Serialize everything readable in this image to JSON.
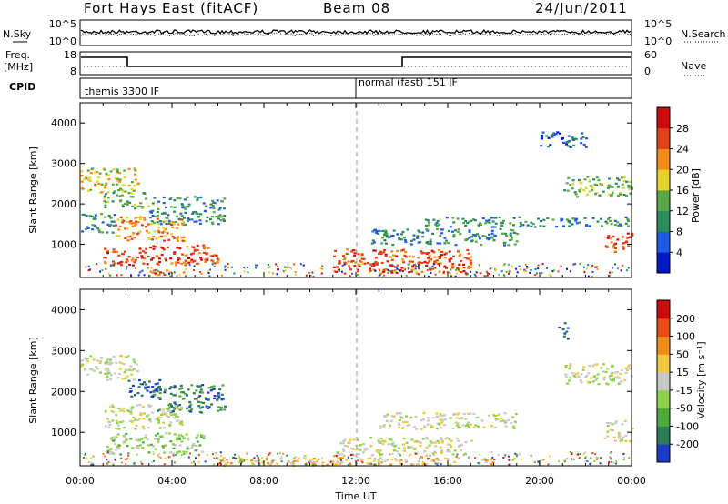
{
  "header": {
    "station": "Fort Hays East (fitACF)",
    "beam": "Beam 08",
    "date": "24/Jun/2011"
  },
  "noise_panel": {
    "left_label": "N.Sky",
    "left_ticks": [
      "10^5",
      "10^0"
    ],
    "right_ticks": [
      "10^5",
      "10^0"
    ],
    "right_label": "N.Search"
  },
  "freq_panel": {
    "left_label_1": "Freq.",
    "left_label_2": "[MHz]",
    "left_ticks": [
      "18",
      "8"
    ],
    "right_ticks": [
      "60",
      "0"
    ],
    "right_label": "Nave"
  },
  "cpid_panel": {
    "label": "CPID",
    "modes": [
      {
        "name": "themis 3300 IF",
        "start_hour": 0
      },
      {
        "name": "normal (fast) 151 IF",
        "start_hour": 12
      }
    ]
  },
  "chart_data": [
    {
      "type": "heatmap",
      "quantity": "Power",
      "ylabel": "Slant Range [km]",
      "xlabel": "Time UT",
      "ylim": [
        180,
        4500
      ],
      "yticks": [
        "1000",
        "2000",
        "3000",
        "4000"
      ],
      "x_ticks": [
        "00:00",
        "04:00",
        "08:00",
        "12:00",
        "16:00",
        "20:00",
        "00:00"
      ],
      "colorbar_label": "Power [dB]",
      "colorbar_ticks": [
        "4",
        "8",
        "12",
        "16",
        "20",
        "24",
        "28"
      ],
      "colorbar_colors": [
        "#0018c8",
        "#1e5ae6",
        "#2c8c5a",
        "#58a848",
        "#e6d22a",
        "#f08c1a",
        "#e44016",
        "#d00a0a"
      ],
      "echo_regions": [
        {
          "t0": 0.0,
          "t1": 2.5,
          "r0": 2300,
          "r1": 2900,
          "level": 4
        },
        {
          "t0": 1.0,
          "t1": 3.0,
          "r0": 1900,
          "r1": 2300,
          "level": 3
        },
        {
          "t0": 3.0,
          "t1": 6.3,
          "r0": 1500,
          "r1": 2200,
          "level": 2
        },
        {
          "t0": 1.5,
          "t1": 4.5,
          "r0": 1100,
          "r1": 1700,
          "level": 5
        },
        {
          "t0": 1.0,
          "t1": 6.0,
          "r0": 500,
          "r1": 1000,
          "level": 6
        },
        {
          "t0": 3.0,
          "t1": 4.5,
          "r0": 250,
          "r1": 400,
          "level": 6
        },
        {
          "t0": 0.0,
          "t1": 1.5,
          "r0": 1300,
          "r1": 1800,
          "level": 2
        },
        {
          "t0": 11.0,
          "t1": 17.0,
          "r0": 300,
          "r1": 900,
          "level": 6
        },
        {
          "t0": 12.5,
          "t1": 19.0,
          "r0": 1000,
          "r1": 1400,
          "level": 2
        },
        {
          "t0": 15.0,
          "t1": 24.0,
          "r0": 1450,
          "r1": 1700,
          "level": 2
        },
        {
          "t0": 21.0,
          "t1": 24.0,
          "r0": 2200,
          "r1": 2700,
          "level": 3
        },
        {
          "t0": 22.8,
          "t1": 24.0,
          "r0": 800,
          "r1": 1300,
          "level": 6
        },
        {
          "t0": 20.0,
          "t1": 22.0,
          "r0": 3400,
          "r1": 3800,
          "level": 1
        }
      ]
    },
    {
      "type": "heatmap",
      "quantity": "Velocity",
      "ylabel": "Slant Range [km]",
      "xlabel": "Time UT",
      "ylim": [
        180,
        4500
      ],
      "yticks": [
        "1000",
        "2000",
        "3000",
        "4000"
      ],
      "x_ticks": [
        "00:00",
        "04:00",
        "08:00",
        "12:00",
        "16:00",
        "20:00",
        "00:00"
      ],
      "colorbar_label": "Velocity [m s⁻¹]",
      "colorbar_ticks": [
        "200",
        "100",
        "50",
        "15",
        "-15",
        "-50",
        "-100",
        "-200"
      ],
      "colorbar_colors": [
        "#1b3cc8",
        "#2b7d55",
        "#4caa3c",
        "#8cd24a",
        "#c8c8c8",
        "#f0c840",
        "#f08c1a",
        "#e84a18",
        "#d00a0a"
      ],
      "echo_regions": [
        {
          "t0": 0.0,
          "t1": 2.5,
          "r0": 2300,
          "r1": 2900,
          "level": 4
        },
        {
          "t0": 2.0,
          "t1": 3.5,
          "r0": 1900,
          "r1": 2300,
          "level": 0
        },
        {
          "t0": 3.0,
          "t1": 6.3,
          "r0": 1500,
          "r1": 2200,
          "level": 1
        },
        {
          "t0": 1.0,
          "t1": 4.5,
          "r0": 1100,
          "r1": 1700,
          "level": 4
        },
        {
          "t0": 1.0,
          "t1": 5.5,
          "r0": 500,
          "r1": 1000,
          "level": 3
        },
        {
          "t0": 6.0,
          "t1": 18.0,
          "r0": 200,
          "r1": 400,
          "level": 5
        },
        {
          "t0": 11.0,
          "t1": 17.0,
          "r0": 450,
          "r1": 900,
          "level": 4
        },
        {
          "t0": 13.0,
          "t1": 19.0,
          "r0": 1100,
          "r1": 1500,
          "level": 4
        },
        {
          "t0": 21.0,
          "t1": 24.0,
          "r0": 2200,
          "r1": 2700,
          "level": 4
        },
        {
          "t0": 22.8,
          "t1": 24.0,
          "r0": 800,
          "r1": 1300,
          "level": 4
        },
        {
          "t0": 20.8,
          "t1": 21.2,
          "r0": 3300,
          "r1": 3700,
          "level": 0
        }
      ]
    }
  ]
}
